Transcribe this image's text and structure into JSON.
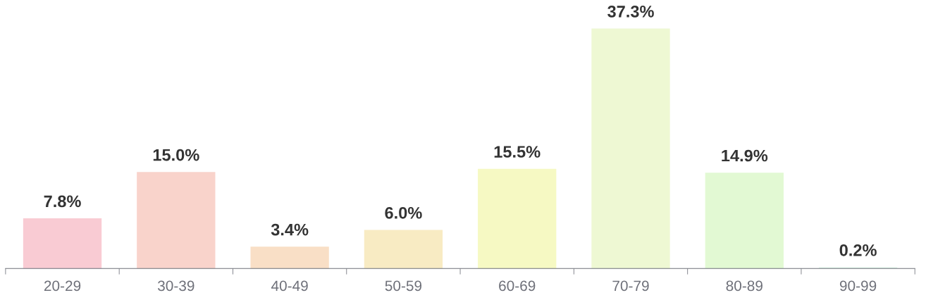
{
  "chart_data": {
    "type": "bar",
    "categories": [
      "20-29",
      "30-39",
      "40-49",
      "50-59",
      "60-69",
      "70-79",
      "80-89",
      "90-99"
    ],
    "values": [
      7.8,
      15.0,
      3.4,
      6.0,
      15.5,
      37.3,
      14.9,
      0.2
    ],
    "value_labels": [
      "7.8%",
      "15.0%",
      "3.4%",
      "6.0%",
      "15.5%",
      "37.3%",
      "14.9%",
      "0.2%"
    ],
    "colors": [
      "#f9cbd3",
      "#f9d3cb",
      "#f9dfc6",
      "#f8ebc3",
      "#f6f9c3",
      "#eef8d3",
      "#e2f9d3",
      "#e0f5ea"
    ],
    "grid": false,
    "legend": false
  }
}
